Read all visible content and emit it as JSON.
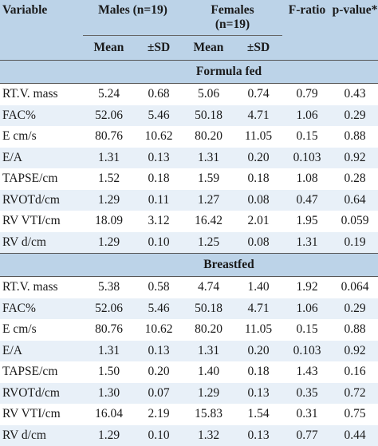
{
  "header": {
    "variable": "Variable",
    "males": "Males (n=19)",
    "females_line1": "Females",
    "females_line2": "(n=19)",
    "f_ratio": "F-ratio",
    "p_value": "p-value*",
    "mean": "Mean",
    "sd": "±SD"
  },
  "sections": [
    {
      "title": "Formula fed",
      "rows": [
        {
          "variable": "RT.V. mass",
          "m_mean": "5.24",
          "m_sd": "0.68",
          "f_mean": "5.06",
          "f_sd": "0.74",
          "f": "0.79",
          "p": "0.43"
        },
        {
          "variable": "FAC%",
          "m_mean": "52.06",
          "m_sd": "5.46",
          "f_mean": "50.18",
          "f_sd": "4.71",
          "f": "1.06",
          "p": "0.29"
        },
        {
          "variable": "E cm/s",
          "m_mean": "80.76",
          "m_sd": "10.62",
          "f_mean": "80.20",
          "f_sd": "11.05",
          "f": "0.15",
          "p": "0.88"
        },
        {
          "variable": "E/A",
          "m_mean": "1.31",
          "m_sd": "0.13",
          "f_mean": "1.31",
          "f_sd": "0.20",
          "f": "0.103",
          "p": "0.92"
        },
        {
          "variable": "TAPSE/cm",
          "m_mean": "1.52",
          "m_sd": "0.18",
          "f_mean": "1.59",
          "f_sd": "0.18",
          "f": "1.08",
          "p": "0.28"
        },
        {
          "variable": "RVOTd/cm",
          "m_mean": "1.29",
          "m_sd": "0.11",
          "f_mean": "1.27",
          "f_sd": "0.08",
          "f": "0.47",
          "p": "0.64"
        },
        {
          "variable": "RV VTI/cm",
          "m_mean": "18.09",
          "m_sd": "3.12",
          "f_mean": "16.42",
          "f_sd": "2.01",
          "f": "1.95",
          "p": "0.059"
        },
        {
          "variable": "RV d/cm",
          "m_mean": "1.29",
          "m_sd": "0.10",
          "f_mean": "1.25",
          "f_sd": "0.08",
          "f": "1.31",
          "p": "0.19"
        }
      ]
    },
    {
      "title": "Breastfed",
      "rows": [
        {
          "variable": "RT.V. mass",
          "m_mean": "5.38",
          "m_sd": "0.58",
          "f_mean": "4.74",
          "f_sd": "1.40",
          "f": "1.92",
          "p": "0.064"
        },
        {
          "variable": "FAC%",
          "m_mean": "52.06",
          "m_sd": "5.46",
          "f_mean": "50.18",
          "f_sd": "4.71",
          "f": "1.06",
          "p": "0.29"
        },
        {
          "variable": "E cm/s",
          "m_mean": "80.76",
          "m_sd": "10.62",
          "f_mean": "80.20",
          "f_sd": "11.05",
          "f": "0.15",
          "p": "0.88"
        },
        {
          "variable": "E/A",
          "m_mean": "1.31",
          "m_sd": "0.13",
          "f_mean": "1.31",
          "f_sd": "0.20",
          "f": "0.103",
          "p": "0.92"
        },
        {
          "variable": "TAPSE/cm",
          "m_mean": "1.50",
          "m_sd": "0.20",
          "f_mean": "1.40",
          "f_sd": "0.18",
          "f": "1.43",
          "p": "0.16"
        },
        {
          "variable": "RVOTd/cm",
          "m_mean": "1.30",
          "m_sd": "0.07",
          "f_mean": "1.29",
          "f_sd": "0.13",
          "f": "0.35",
          "p": "0.72"
        },
        {
          "variable": "RV VTI/cm",
          "m_mean": "16.04",
          "m_sd": "2.19",
          "f_mean": "15.83",
          "f_sd": "1.54",
          "f": "0.31",
          "p": "0.75"
        },
        {
          "variable": "RV d/cm",
          "m_mean": "1.29",
          "m_sd": "0.10",
          "f_mean": "1.32",
          "f_sd": "0.13",
          "f": "0.77",
          "p": "0.44"
        }
      ]
    }
  ]
}
